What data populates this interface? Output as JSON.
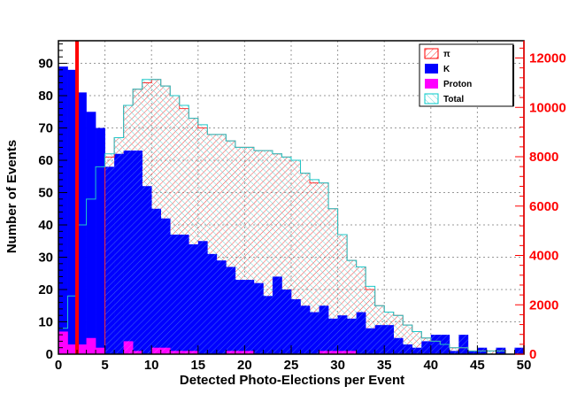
{
  "chart_data": {
    "type": "bar",
    "subtype": "overlaid-histogram",
    "title": "",
    "xlabel": "Detected Photo-Elections per Event",
    "ylabel": "Number of Events",
    "xlim": [
      0,
      50
    ],
    "ylim": [
      0,
      97
    ],
    "y2lim": [
      0,
      12700
    ],
    "bin_width": 1,
    "grid": true,
    "legend_position": "top-right",
    "x_ticks": [
      "0",
      "5",
      "10",
      "15",
      "20",
      "25",
      "30",
      "35",
      "40",
      "45",
      "50"
    ],
    "y_ticks": [
      "0",
      "10",
      "20",
      "30",
      "40",
      "50",
      "60",
      "70",
      "80",
      "90"
    ],
    "y2_ticks": [
      "0",
      "2000",
      "4000",
      "6000",
      "8000",
      "10000",
      "12000"
    ],
    "threshold_line_x": 2,
    "x": [
      0.5,
      1.5,
      2.5,
      3.5,
      4.5,
      5.5,
      6.5,
      7.5,
      8.5,
      9.5,
      10.5,
      11.5,
      12.5,
      13.5,
      14.5,
      15.5,
      16.5,
      17.5,
      18.5,
      19.5,
      20.5,
      21.5,
      22.5,
      23.5,
      24.5,
      25.5,
      26.5,
      27.5,
      28.5,
      29.5,
      30.5,
      31.5,
      32.5,
      33.5,
      34.5,
      35.5,
      36.5,
      37.5,
      38.5,
      39.5,
      40.5,
      41.5,
      42.5,
      43.5,
      44.5,
      45.5,
      46.5,
      47.5,
      48.5,
      49.5
    ],
    "series": [
      {
        "name": "π",
        "axis": "left",
        "values": [
          0,
          0,
          0,
          0,
          0,
          61,
          67,
          77,
          82,
          84,
          85,
          83,
          80,
          76,
          73,
          70,
          68,
          68,
          66,
          64,
          64,
          63,
          63,
          62,
          61,
          60,
          56,
          53,
          53,
          45,
          37,
          29,
          27,
          20,
          15,
          13,
          12,
          9,
          7,
          5,
          4,
          3,
          2,
          2,
          1,
          1,
          1,
          1,
          0,
          0
        ]
      },
      {
        "name": "K",
        "axis": "left",
        "values": [
          89,
          88,
          81,
          75,
          70,
          58,
          62,
          63,
          63,
          52,
          45,
          42,
          37,
          37,
          34,
          35,
          31,
          29,
          27,
          23,
          23,
          22,
          18,
          24,
          20,
          17,
          15,
          13,
          15,
          11,
          12,
          11,
          13,
          8,
          9,
          9,
          5,
          3,
          2,
          4,
          6,
          6,
          1,
          6,
          1,
          2,
          0,
          2,
          0,
          2
        ]
      },
      {
        "name": "Proton",
        "axis": "left",
        "values": [
          7,
          3,
          3,
          5,
          2,
          0,
          0,
          4,
          1,
          0,
          2,
          2,
          1,
          1,
          1,
          0,
          0,
          0,
          1,
          1,
          1,
          0,
          0,
          0,
          0,
          0,
          0,
          0,
          1,
          1,
          1,
          1,
          0,
          0,
          0,
          0,
          0,
          0,
          0,
          0,
          0,
          0,
          0,
          0,
          0,
          0,
          0,
          0,
          0,
          0
        ]
      },
      {
        "name": "Total",
        "axis": "left",
        "values": [
          8,
          18,
          40,
          48,
          58,
          62,
          67,
          77,
          82,
          85,
          85,
          83,
          80,
          77,
          73,
          71,
          68,
          68,
          66,
          64,
          64,
          63,
          63,
          62,
          61,
          60,
          56,
          54,
          53,
          45,
          37,
          29,
          27,
          21,
          15,
          13,
          12,
          9,
          7,
          5,
          4,
          3,
          2,
          2,
          1,
          1,
          1,
          1,
          0,
          0
        ]
      }
    ],
    "colors": {
      "pi": "#ff0000",
      "k": "#0000ff",
      "proton": "#ff00ff",
      "total": "#00c8c8",
      "threshold": "#ff0000",
      "right_axis": "#ff0000"
    }
  }
}
